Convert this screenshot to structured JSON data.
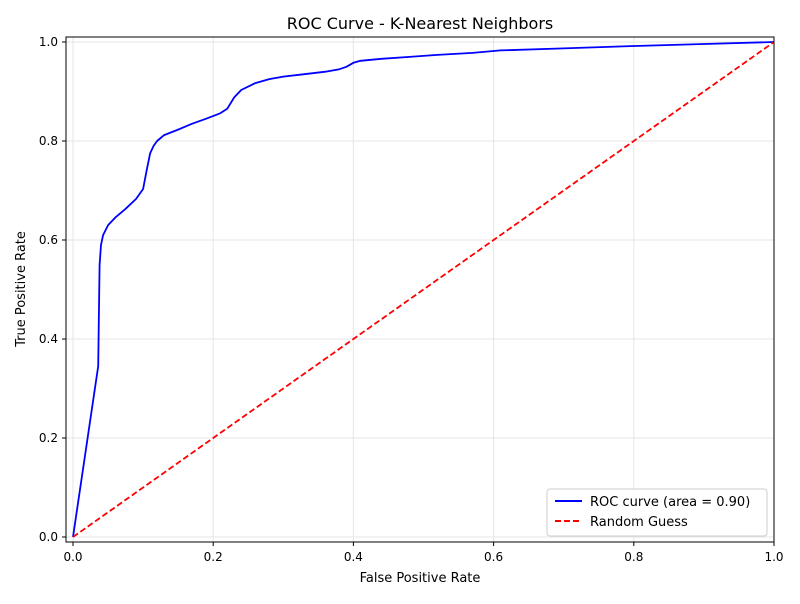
{
  "chart_data": {
    "type": "line",
    "title": "ROC Curve - K-Nearest Neighbors",
    "xlabel": "False Positive Rate",
    "ylabel": "True Positive Rate",
    "xlim": [
      0.0,
      1.0
    ],
    "ylim": [
      0.0,
      1.01
    ],
    "xticks": [
      "0.0",
      "0.2",
      "0.4",
      "0.6",
      "0.8",
      "1.0"
    ],
    "yticks": [
      "0.0",
      "0.2",
      "0.4",
      "0.6",
      "0.8",
      "1.0"
    ],
    "grid": true,
    "legend_position": "lower-right",
    "series": [
      {
        "name": "ROC curve (area = 0.90)",
        "color": "#0000ff",
        "style": "solid",
        "x": [
          0.0,
          0.036,
          0.037,
          0.038,
          0.04,
          0.043,
          0.05,
          0.06,
          0.075,
          0.09,
          0.1,
          0.105,
          0.11,
          0.115,
          0.12,
          0.13,
          0.15,
          0.17,
          0.19,
          0.21,
          0.22,
          0.23,
          0.24,
          0.26,
          0.28,
          0.3,
          0.33,
          0.36,
          0.38,
          0.39,
          0.4,
          0.41,
          0.44,
          0.48,
          0.52,
          0.57,
          0.61,
          0.7,
          0.8,
          0.9,
          1.0
        ],
        "y": [
          0.0,
          0.345,
          0.45,
          0.55,
          0.59,
          0.61,
          0.63,
          0.645,
          0.663,
          0.683,
          0.703,
          0.74,
          0.775,
          0.79,
          0.8,
          0.812,
          0.823,
          0.835,
          0.845,
          0.856,
          0.865,
          0.888,
          0.903,
          0.917,
          0.925,
          0.93,
          0.935,
          0.94,
          0.945,
          0.95,
          0.958,
          0.962,
          0.966,
          0.97,
          0.974,
          0.978,
          0.983,
          0.987,
          0.992,
          0.996,
          1.0
        ]
      },
      {
        "name": "Random Guess",
        "color": "#ff0000",
        "style": "dashed",
        "x": [
          0.0,
          1.0
        ],
        "y": [
          0.0,
          1.0
        ]
      }
    ]
  }
}
